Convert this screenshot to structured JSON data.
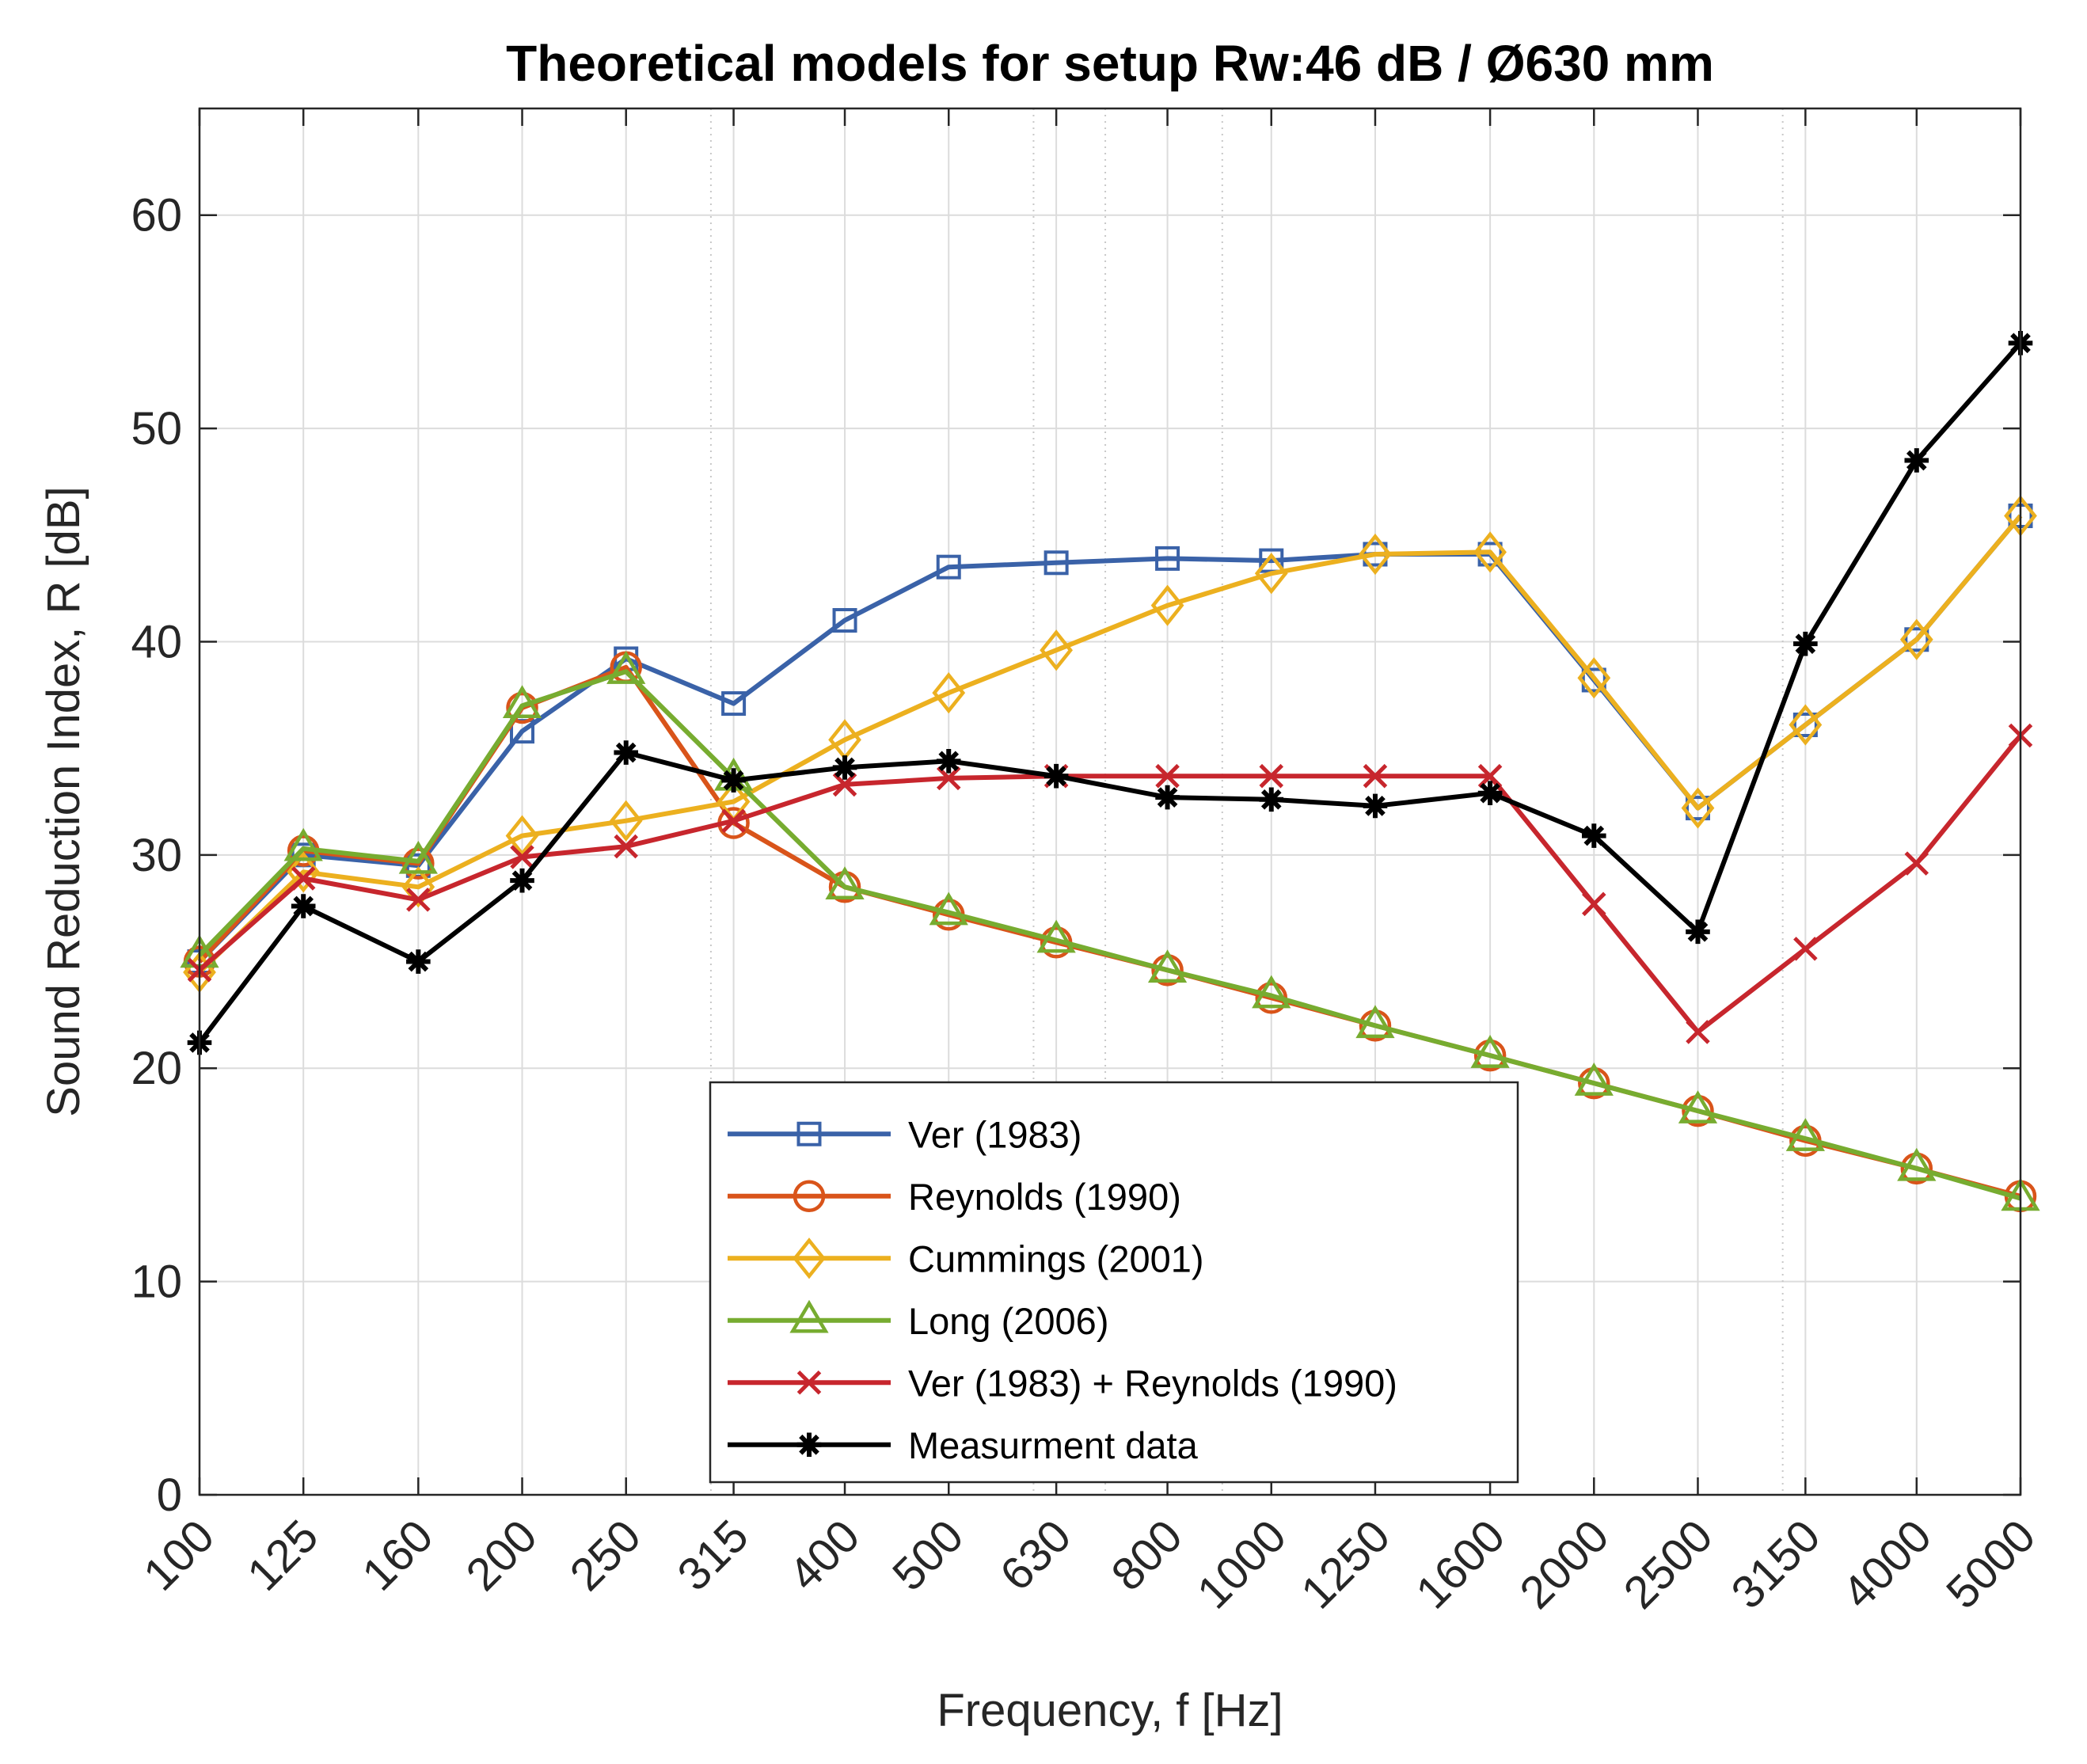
{
  "chart_data": {
    "type": "line",
    "title": "Theoretical models for setup Rw:46 dB / Ø630 mm",
    "xlabel": "Frequency, f [Hz]",
    "ylabel": "Sound Reduction Index, R [dB]",
    "xscale": "log",
    "xlim": [
      100,
      5000
    ],
    "ylim": [
      0,
      65
    ],
    "yticks": [
      0,
      10,
      20,
      30,
      40,
      50,
      60
    ],
    "grid": true,
    "legend_position": "bottom-center",
    "categories": [
      "100",
      "125",
      "160",
      "200",
      "250",
      "315",
      "400",
      "500",
      "630",
      "800",
      "1000",
      "1250",
      "1600",
      "2000",
      "2500",
      "3150",
      "4000",
      "5000"
    ],
    "x": [
      100,
      125,
      160,
      200,
      250,
      315,
      400,
      500,
      630,
      800,
      1000,
      1250,
      1600,
      2000,
      2500,
      3150,
      4000,
      5000
    ],
    "series": [
      {
        "name": "Ver (1983)",
        "color": "#3a62a8",
        "marker": "square",
        "values": [
          25.0,
          30.0,
          29.5,
          35.8,
          39.2,
          37.1,
          41.0,
          43.5,
          43.7,
          43.9,
          43.8,
          44.1,
          44.1,
          38.2,
          32.2,
          36.1,
          40.1,
          45.9
        ]
      },
      {
        "name": "Reynolds (1990)",
        "color": "#d9541a",
        "marker": "circle",
        "values": [
          25.0,
          30.2,
          29.6,
          36.9,
          38.8,
          31.5,
          28.5,
          27.2,
          25.9,
          24.6,
          23.3,
          22.0,
          20.6,
          19.3,
          18.0,
          16.6,
          15.3,
          14.0
        ]
      },
      {
        "name": "Cummings (2001)",
        "color": "#ecb01f",
        "marker": "diamond",
        "values": [
          24.5,
          29.2,
          28.5,
          30.9,
          31.6,
          32.5,
          35.4,
          37.6,
          39.6,
          41.7,
          43.2,
          44.1,
          44.2,
          38.3,
          32.2,
          36.1,
          40.1,
          45.9
        ]
      },
      {
        "name": "Long (2006)",
        "color": "#77ac30",
        "marker": "triangle",
        "values": [
          25.3,
          30.3,
          29.7,
          37.0,
          38.6,
          33.6,
          28.5,
          27.3,
          26.0,
          24.6,
          23.4,
          22.0,
          20.6,
          19.3,
          18.0,
          16.7,
          15.3,
          13.9
        ]
      },
      {
        "name": "Ver (1983) + Reynolds (1990)",
        "color": "#c7262d",
        "marker": "x",
        "values": [
          24.6,
          28.9,
          27.9,
          29.9,
          30.4,
          31.6,
          33.3,
          33.6,
          33.7,
          33.7,
          33.7,
          33.7,
          33.7,
          27.7,
          21.7,
          25.6,
          29.6,
          35.6
        ]
      },
      {
        "name": "Measurment data",
        "color": "#000000",
        "marker": "star",
        "values": [
          21.2,
          27.6,
          25.0,
          28.8,
          34.8,
          33.5,
          34.1,
          34.4,
          33.7,
          32.7,
          32.6,
          32.3,
          32.9,
          30.9,
          26.4,
          39.9,
          48.5,
          54.0
        ]
      }
    ]
  }
}
